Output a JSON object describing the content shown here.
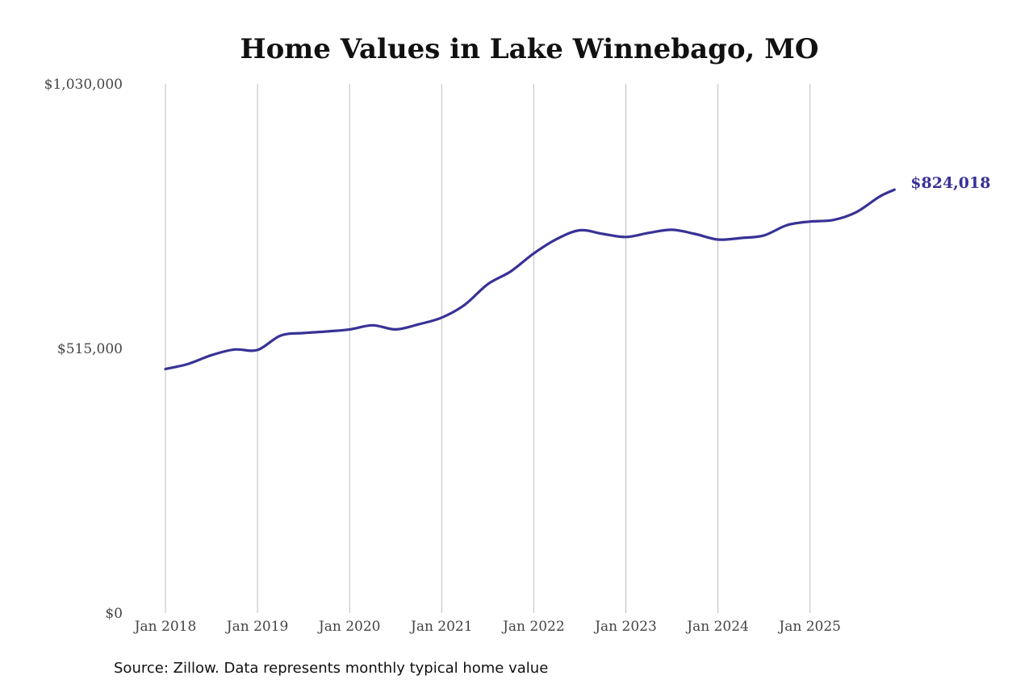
{
  "chart_data": {
    "type": "line",
    "title": "Home Values in Lake Winnebago, MO",
    "source_note": "Source: Zillow. Data represents monthly typical home value",
    "xlabel": "",
    "ylabel": "",
    "ylim": [
      0,
      1030000
    ],
    "y_ticks": [
      {
        "value": 0,
        "label": "$0"
      },
      {
        "value": 515000,
        "label": "$515,000"
      },
      {
        "value": 1030000,
        "label": "$1,030,000"
      }
    ],
    "x_ticks": [
      "Jan 2018",
      "Jan 2019",
      "Jan 2020",
      "Jan 2021",
      "Jan 2022",
      "Jan 2023",
      "Jan 2024",
      "Jan 2025"
    ],
    "grid": "vertical",
    "line_color": "#383296",
    "end_label": "$824,018",
    "x_unit": "years",
    "series": [
      {
        "x": [
          "2018-01",
          "2018-04",
          "2018-07",
          "2018-10",
          "2019-01",
          "2019-04",
          "2019-07",
          "2019-10",
          "2020-01",
          "2020-04",
          "2020-07",
          "2020-10",
          "2021-01",
          "2021-04",
          "2021-07",
          "2021-10",
          "2022-01",
          "2022-04",
          "2022-07",
          "2022-10",
          "2023-01",
          "2023-04",
          "2023-07",
          "2023-10",
          "2024-01",
          "2024-04",
          "2024-07",
          "2024-10",
          "2025-01",
          "2025-04",
          "2025-07",
          "2025-10",
          "2025-12"
        ],
        "values": [
          475000,
          485000,
          502000,
          513000,
          512000,
          540000,
          545000,
          548000,
          552000,
          560000,
          552000,
          562000,
          575000,
          600000,
          640000,
          665000,
          700000,
          728000,
          745000,
          738000,
          732000,
          740000,
          746000,
          738000,
          727000,
          730000,
          735000,
          755000,
          762000,
          765000,
          780000,
          810000,
          824018
        ]
      }
    ]
  }
}
